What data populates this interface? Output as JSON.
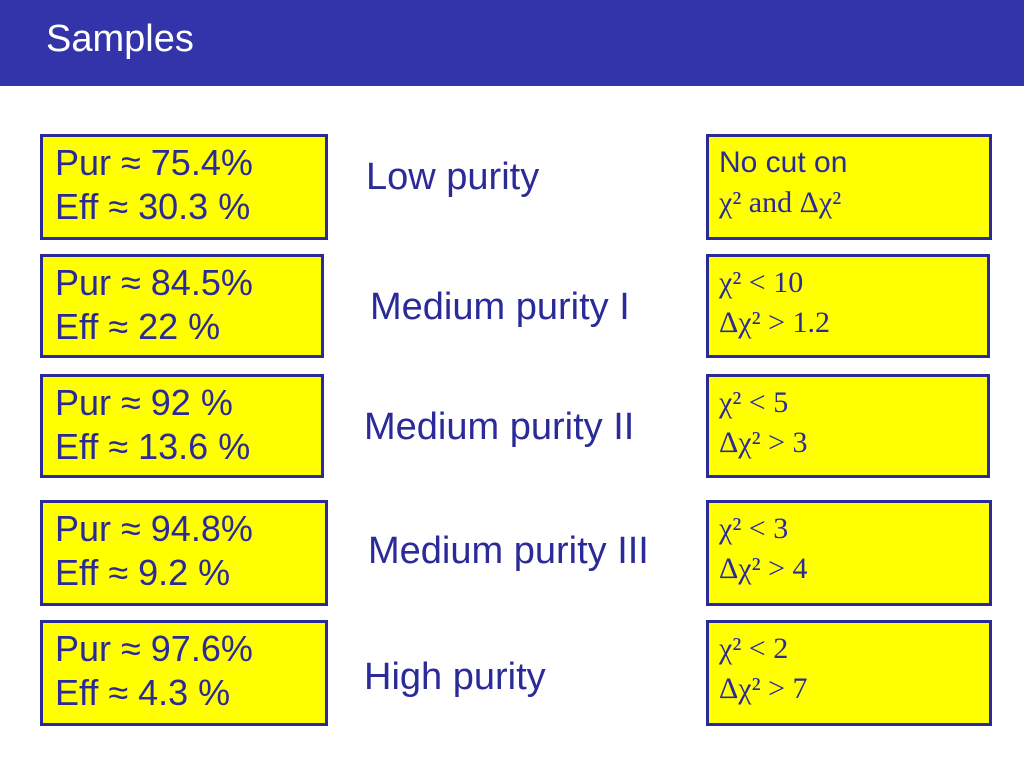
{
  "slide": {
    "title": "Samples"
  },
  "samples": [
    {
      "stats": [
        "Pur ≈ 75.4%",
        "Eff ≈ 30.3 %"
      ],
      "label": "Low purity",
      "cuts": [
        "No cut on",
        "χ²  and   Δχ²"
      ]
    },
    {
      "stats": [
        "Pur ≈ 84.5%",
        "Eff ≈ 22 %"
      ],
      "label": "Medium purity I",
      "cuts": [
        "χ² < 10",
        "Δχ² > 1.2"
      ]
    },
    {
      "stats": [
        "Pur ≈ 92 %",
        "Eff ≈ 13.6 %"
      ],
      "label": "Medium purity II",
      "cuts": [
        "χ² < 5",
        "Δχ² > 3"
      ]
    },
    {
      "stats": [
        "Pur ≈ 94.8%",
        "Eff ≈ 9.2 %"
      ],
      "label": "Medium purity III",
      "cuts": [
        "χ² < 3",
        "Δχ² > 4"
      ]
    },
    {
      "stats": [
        "Pur ≈ 97.6%",
        "Eff ≈ 4.3 %"
      ],
      "label": "High purity",
      "cuts": [
        "χ² < 2",
        "Δχ² > 7"
      ]
    }
  ]
}
